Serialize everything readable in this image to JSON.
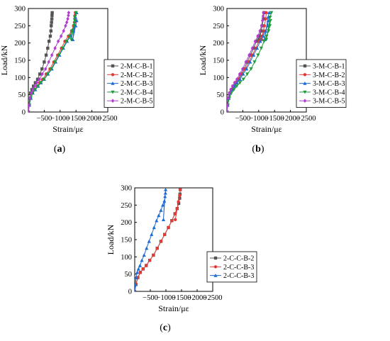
{
  "chart_data": [
    {
      "type": "line",
      "panel_label": "(a)",
      "xlabel": "Strain/με",
      "ylabel": "Load/kN",
      "xlim": [
        0,
        -2500
      ],
      "ylim": [
        0,
        300
      ],
      "xticks": [
        -500,
        -1000,
        -1500,
        -2000,
        -2500
      ],
      "xtick_labels": [
        "−500",
        "−1000",
        "−1500",
        "−2000",
        "−2500"
      ],
      "yticks": [
        0,
        50,
        100,
        150,
        200,
        250,
        300
      ],
      "grid": false,
      "legend_position": "right-middle",
      "series": [
        {
          "name": "2-M-C-B-1",
          "color": "#555555",
          "marker": "square",
          "x": [
            0,
            -20,
            -40,
            -70,
            -110,
            -160,
            -220,
            -290,
            -360,
            -430,
            -500,
            -560,
            -610,
            -650,
            -690,
            -710,
            -720,
            -730,
            -740,
            -745,
            -750
          ],
          "y": [
            0,
            20,
            40,
            55,
            65,
            75,
            85,
            95,
            110,
            125,
            145,
            165,
            185,
            205,
            220,
            235,
            250,
            260,
            270,
            280,
            288
          ]
        },
        {
          "name": "2-M-C-B-2",
          "color": "#e53935",
          "marker": "circle",
          "x": [
            0,
            -30,
            -70,
            -130,
            -200,
            -280,
            -360,
            -450,
            -560,
            -680,
            -800,
            -920,
            -1040,
            -1150,
            -1260,
            -1360,
            -1420,
            -1450,
            -1460,
            -1470,
            -1480
          ],
          "y": [
            0,
            20,
            40,
            55,
            65,
            75,
            85,
            95,
            110,
            125,
            145,
            165,
            185,
            205,
            220,
            235,
            250,
            260,
            270,
            280,
            288
          ]
        },
        {
          "name": "2-M-C-B-3",
          "color": "#1e6bd6",
          "marker": "triangle",
          "x": [
            0,
            -30,
            -80,
            -140,
            -220,
            -310,
            -400,
            -500,
            -620,
            -740,
            -860,
            -980,
            -1100,
            -1220,
            -1330,
            -1420,
            -1490,
            -1520,
            -1400,
            -1480,
            -1520
          ],
          "y": [
            0,
            20,
            40,
            55,
            65,
            75,
            85,
            95,
            110,
            125,
            145,
            165,
            185,
            205,
            220,
            235,
            250,
            265,
            210,
            275,
            288
          ]
        },
        {
          "name": "2-M-C-B-4",
          "color": "#1b9e3b",
          "marker": "triangle-down",
          "x": [
            0,
            -30,
            -75,
            -135,
            -210,
            -300,
            -390,
            -490,
            -600,
            -720,
            -840,
            -960,
            -1080,
            -1200,
            -1300,
            -1380,
            -1440,
            -1470,
            -1350,
            -1460,
            -1500
          ],
          "y": [
            0,
            20,
            40,
            55,
            65,
            75,
            85,
            95,
            110,
            125,
            145,
            165,
            185,
            205,
            220,
            235,
            250,
            265,
            210,
            275,
            288
          ]
        },
        {
          "name": "2-M-C-B-5",
          "color": "#b43bd1",
          "marker": "diamond",
          "x": [
            0,
            -20,
            -50,
            -90,
            -140,
            -200,
            -270,
            -350,
            -440,
            -540,
            -640,
            -740,
            -840,
            -940,
            -1030,
            -1110,
            -1170,
            -1210,
            -1240,
            -1260,
            -1270
          ],
          "y": [
            0,
            20,
            40,
            55,
            65,
            75,
            85,
            95,
            110,
            125,
            145,
            165,
            185,
            205,
            220,
            235,
            250,
            260,
            270,
            280,
            288
          ]
        }
      ]
    },
    {
      "type": "line",
      "panel_label": "(b)",
      "xlabel": "Strain/με",
      "ylabel": "Load/kN",
      "xlim": [
        0,
        -2500
      ],
      "ylim": [
        0,
        300
      ],
      "xticks": [
        -500,
        -1000,
        -1500,
        -2000,
        -2500
      ],
      "xtick_labels": [
        "−500",
        "−1000",
        "−1500",
        "−2000",
        "−2500"
      ],
      "yticks": [
        0,
        50,
        100,
        150,
        200,
        250,
        300
      ],
      "grid": false,
      "legend_position": "right-middle",
      "series": [
        {
          "name": "3-M-C-B-1",
          "color": "#555555",
          "marker": "square",
          "x": [
            0,
            -20,
            -50,
            -90,
            -140,
            -200,
            -270,
            -350,
            -440,
            -540,
            -640,
            -740,
            -840,
            -930,
            -1010,
            -1080,
            -1020,
            -1110,
            -1150,
            -1170
          ],
          "y": [
            0,
            20,
            40,
            55,
            65,
            75,
            85,
            95,
            110,
            125,
            145,
            165,
            185,
            205,
            220,
            235,
            210,
            250,
            270,
            288
          ]
        },
        {
          "name": "3-M-C-B-2",
          "color": "#e53935",
          "marker": "circle",
          "x": [
            0,
            -20,
            -55,
            -100,
            -155,
            -220,
            -295,
            -380,
            -475,
            -580,
            -690,
            -800,
            -910,
            -1010,
            -1100,
            -1170,
            -1090,
            -1180,
            -1220,
            -1240
          ],
          "y": [
            0,
            20,
            40,
            55,
            65,
            75,
            85,
            95,
            110,
            125,
            145,
            165,
            185,
            205,
            220,
            235,
            210,
            250,
            270,
            288
          ]
        },
        {
          "name": "3-M-C-B-3",
          "color": "#1e6bd6",
          "marker": "triangle",
          "x": [
            0,
            -25,
            -60,
            -110,
            -170,
            -240,
            -320,
            -410,
            -510,
            -620,
            -730,
            -840,
            -950,
            -1050,
            -1140,
            -1220,
            -1280,
            -1300,
            -1180,
            -1300,
            -1330
          ],
          "y": [
            0,
            20,
            40,
            55,
            65,
            75,
            85,
            95,
            110,
            125,
            145,
            165,
            185,
            205,
            220,
            235,
            250,
            265,
            210,
            275,
            288
          ]
        },
        {
          "name": "3-M-C-B-4",
          "color": "#1b9e3b",
          "marker": "triangle-down",
          "x": [
            0,
            -30,
            -75,
            -140,
            -220,
            -310,
            -410,
            -520,
            -640,
            -760,
            -870,
            -980,
            -1080,
            -1170,
            -1250,
            -1310,
            -1350,
            -1370,
            -1240,
            -1360,
            -1400
          ],
          "y": [
            0,
            20,
            40,
            55,
            65,
            75,
            85,
            95,
            110,
            125,
            145,
            165,
            185,
            205,
            220,
            235,
            250,
            265,
            210,
            275,
            288
          ]
        },
        {
          "name": "3-M-C-B-5",
          "color": "#b43bd1",
          "marker": "diamond",
          "x": [
            0,
            -15,
            -40,
            -75,
            -120,
            -175,
            -240,
            -315,
            -400,
            -495,
            -595,
            -700,
            -800,
            -890,
            -970,
            -1040,
            -1090,
            -1120,
            -1140,
            -1150
          ],
          "y": [
            0,
            20,
            40,
            55,
            65,
            75,
            85,
            95,
            110,
            125,
            145,
            165,
            185,
            205,
            220,
            235,
            250,
            265,
            278,
            288
          ]
        }
      ]
    },
    {
      "type": "line",
      "panel_label": "(c)",
      "xlabel": "Strain/με",
      "ylabel": "Load/kN",
      "xlim": [
        0,
        -2500
      ],
      "ylim": [
        0,
        300
      ],
      "xticks": [
        -500,
        -1000,
        -1500,
        -2000,
        -2500
      ],
      "xtick_labels": [
        "−500",
        "−1000",
        "−1500",
        "−2000",
        "−2500"
      ],
      "yticks": [
        0,
        50,
        100,
        150,
        200,
        250,
        300
      ],
      "grid": false,
      "legend_position": "right-middle",
      "series": [
        {
          "name": "2-C-C-B-2",
          "color": "#555555",
          "marker": "square",
          "x": [
            0,
            -40,
            -100,
            -180,
            -270,
            -370,
            -480,
            -600,
            -720,
            -840,
            -960,
            -1080,
            -1190,
            -1290,
            -1360,
            -1410,
            -1440,
            -1450,
            -1460
          ],
          "y": [
            0,
            20,
            40,
            55,
            65,
            75,
            90,
            105,
            125,
            145,
            165,
            185,
            205,
            225,
            240,
            255,
            270,
            282,
            295
          ]
        },
        {
          "name": "2-C-C-B-3",
          "color": "#e53935",
          "marker": "circle",
          "x": [
            0,
            -40,
            -100,
            -180,
            -270,
            -370,
            -480,
            -600,
            -720,
            -840,
            -960,
            -1080,
            -1190,
            -1290,
            -1360,
            -1300,
            -1400,
            -1440,
            -1460
          ],
          "y": [
            0,
            20,
            40,
            55,
            65,
            75,
            90,
            105,
            125,
            145,
            165,
            185,
            205,
            225,
            240,
            208,
            260,
            278,
            295
          ]
        },
        {
          "name": "2-C-C-B-3",
          "color": "#1e6bd6",
          "marker": "triangle",
          "x": [
            0,
            -20,
            -45,
            -80,
            -120,
            -170,
            -230,
            -300,
            -380,
            -460,
            -540,
            -620,
            -700,
            -770,
            -840,
            -900,
            -950,
            -920,
            -970,
            -985,
            -990
          ],
          "y": [
            0,
            20,
            40,
            55,
            65,
            75,
            90,
            105,
            125,
            145,
            165,
            185,
            205,
            220,
            235,
            250,
            262,
            208,
            275,
            285,
            295
          ]
        }
      ]
    }
  ]
}
